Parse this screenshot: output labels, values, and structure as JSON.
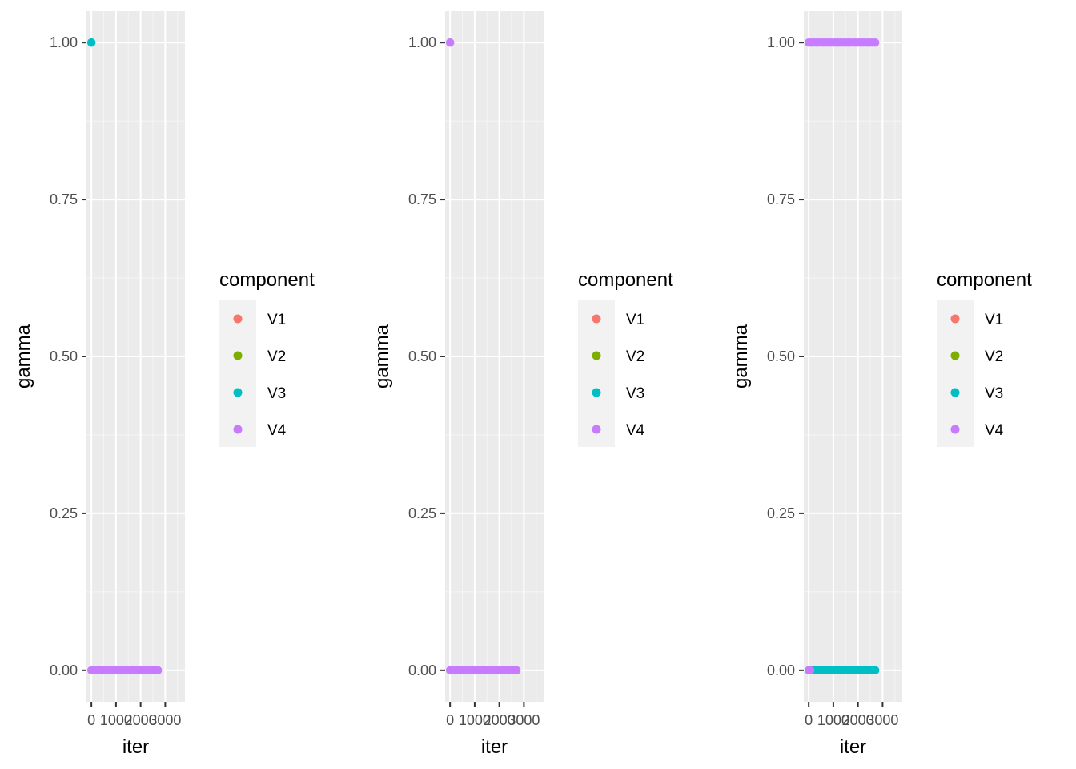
{
  "chart_data": [
    {
      "type": "scatter",
      "xlabel": "iter",
      "ylabel": "gamma",
      "x_tick_labels": [
        "0",
        "1000",
        "2000",
        "3000"
      ],
      "y_tick_labels": [
        "0.00",
        "0.25",
        "0.50",
        "0.75",
        "1.00"
      ],
      "xlim": [
        -200,
        3800
      ],
      "ylim": [
        -0.05,
        1.05
      ],
      "grid": true,
      "legend_title": "component",
      "legend_position": "right",
      "series": [
        {
          "name": "V1",
          "color": "#F8766D",
          "segments": []
        },
        {
          "name": "V2",
          "color": "#7CAE00",
          "segments": []
        },
        {
          "name": "V3",
          "color": "#00BFC4",
          "segments": [
            {
              "x_from": 0,
              "x_to": 0,
              "y": 1.0
            }
          ]
        },
        {
          "name": "V4",
          "color": "#C77CFF",
          "segments": [
            {
              "x_from": 0,
              "x_to": 2700,
              "y": 0.0
            }
          ]
        }
      ]
    },
    {
      "type": "scatter",
      "xlabel": "iter",
      "ylabel": "gamma",
      "x_tick_labels": [
        "0",
        "1000",
        "2000",
        "3000"
      ],
      "y_tick_labels": [
        "0.00",
        "0.25",
        "0.50",
        "0.75",
        "1.00"
      ],
      "xlim": [
        -200,
        3800
      ],
      "ylim": [
        -0.05,
        1.05
      ],
      "grid": true,
      "legend_title": "component",
      "legend_position": "right",
      "series": [
        {
          "name": "V1",
          "color": "#F8766D",
          "segments": []
        },
        {
          "name": "V2",
          "color": "#7CAE00",
          "segments": []
        },
        {
          "name": "V3",
          "color": "#00BFC4",
          "segments": []
        },
        {
          "name": "V4",
          "color": "#C77CFF",
          "segments": [
            {
              "x_from": 0,
              "x_to": 0,
              "y": 1.0
            },
            {
              "x_from": 0,
              "x_to": 2700,
              "y": 0.0
            }
          ]
        }
      ]
    },
    {
      "type": "scatter",
      "xlabel": "iter",
      "ylabel": "gamma",
      "x_tick_labels": [
        "0",
        "1000",
        "2000",
        "3000"
      ],
      "y_tick_labels": [
        "0.00",
        "0.25",
        "0.50",
        "0.75",
        "1.00"
      ],
      "xlim": [
        -200,
        3800
      ],
      "ylim": [
        -0.05,
        1.05
      ],
      "grid": true,
      "legend_title": "component",
      "legend_position": "right",
      "series": [
        {
          "name": "V1",
          "color": "#F8766D",
          "segments": []
        },
        {
          "name": "V2",
          "color": "#7CAE00",
          "segments": []
        },
        {
          "name": "V3",
          "color": "#00BFC4",
          "segments": [
            {
              "x_from": 100,
              "x_to": 2700,
              "y": 0.0
            }
          ]
        },
        {
          "name": "V4",
          "color": "#C77CFF",
          "segments": [
            {
              "x_from": 0,
              "x_to": 2700,
              "y": 1.0
            },
            {
              "x_from": 0,
              "x_to": 60,
              "y": 0.0
            }
          ]
        }
      ]
    }
  ]
}
